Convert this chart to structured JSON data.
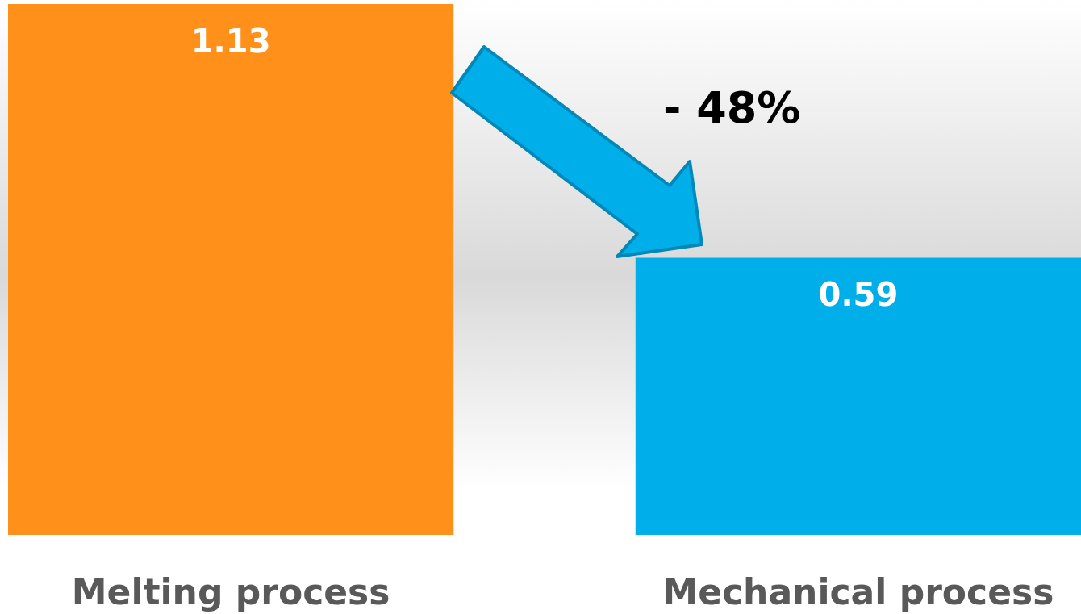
{
  "chart_data": {
    "type": "bar",
    "categories": [
      "Melting process",
      "Mechanical process"
    ],
    "values": [
      1.13,
      0.59
    ],
    "colors": [
      "#ff9019",
      "#00aeea"
    ],
    "data_labels": true,
    "annotations": [
      "- 48%"
    ]
  }
}
